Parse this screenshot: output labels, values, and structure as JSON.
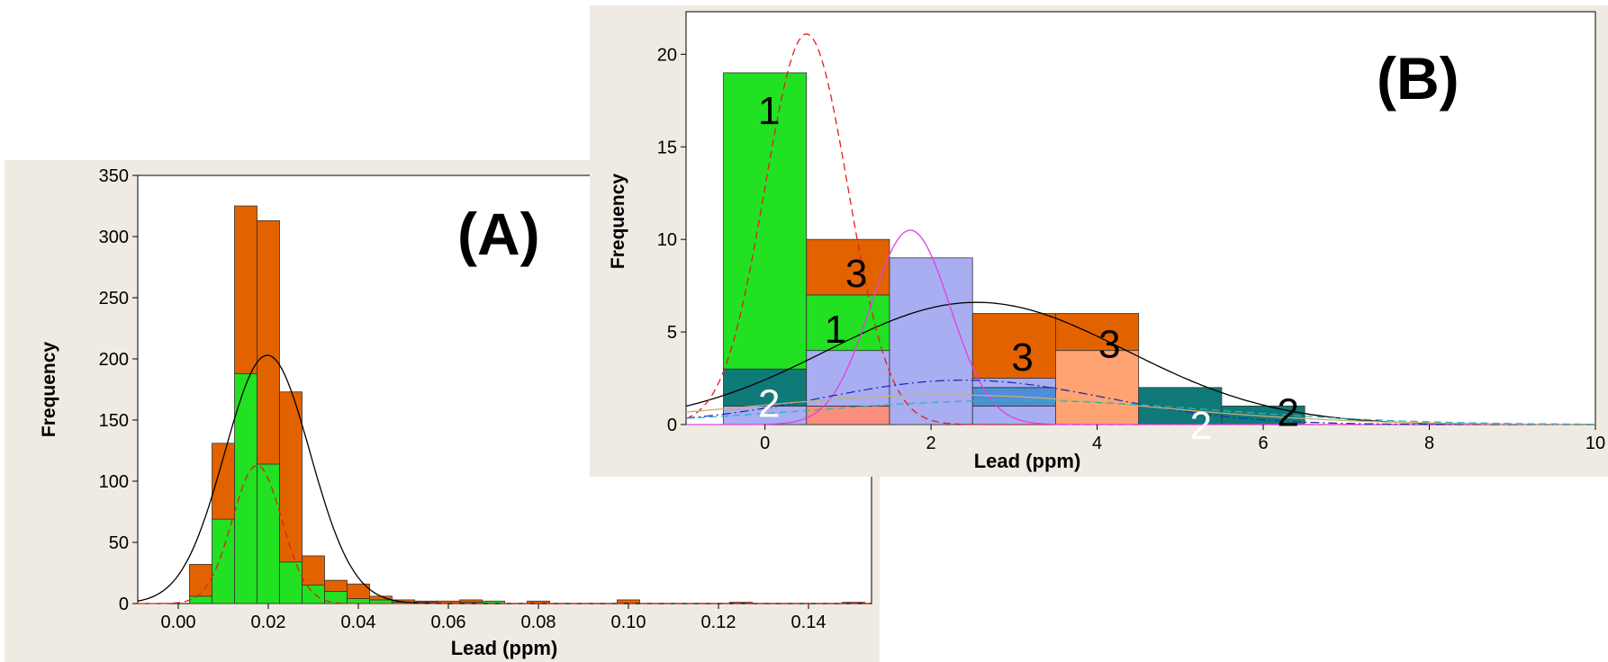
{
  "chart_data": [
    {
      "type": "bar",
      "panel_label": "(A)",
      "title": "",
      "xlabel": "Lead (ppm)",
      "ylabel": "Frequency",
      "xlim": [
        -0.009,
        0.154
      ],
      "ylim": [
        0,
        350
      ],
      "xticks": [
        "0.00",
        "0.02",
        "0.04",
        "0.06",
        "0.08",
        "0.10",
        "0.12",
        "0.14"
      ],
      "xtick_values": [
        0.0,
        0.02,
        0.04,
        0.06,
        0.08,
        0.1,
        0.12,
        0.14
      ],
      "yticks": [
        "0",
        "50",
        "100",
        "150",
        "200",
        "250",
        "300",
        "350"
      ],
      "ytick_values": [
        0,
        50,
        100,
        150,
        200,
        250,
        300,
        350
      ],
      "bin_width": 0.005,
      "bin_edges_start": [
        0.0025,
        0.0075,
        0.0125,
        0.0175,
        0.0225,
        0.0275,
        0.0325,
        0.0375,
        0.0425,
        0.0475,
        0.0525,
        0.0575,
        0.0625,
        0.0675,
        0.0775,
        0.0975,
        0.1225,
        0.1475
      ],
      "series": [
        {
          "color": "#22e022",
          "values": [
            6,
            69,
            188,
            114,
            34,
            15,
            10,
            4,
            3,
            1,
            1,
            0,
            1,
            2,
            0,
            0,
            0,
            0
          ]
        },
        {
          "color": "#e36200",
          "values": [
            26,
            62,
            137,
            199,
            139,
            24,
            9,
            12,
            3,
            2,
            1,
            2,
            2,
            0,
            2,
            3,
            1,
            1
          ]
        }
      ],
      "fits": [
        {
          "style": "solid",
          "color": "#000000",
          "mean": 0.0198,
          "sd": 0.0095,
          "peak": 203
        },
        {
          "style": "dashed",
          "color": "#e02020",
          "mean": 0.0175,
          "sd": 0.0055,
          "peak": 113
        }
      ]
    },
    {
      "type": "bar",
      "panel_label": "(B)",
      "title": "",
      "xlabel": "Lead (ppm)",
      "ylabel": "Frequency",
      "xlim": [
        -0.95,
        10.0
      ],
      "ylim": [
        0,
        22.3
      ],
      "xticks": [
        "0",
        "2",
        "4",
        "6",
        "8",
        "10"
      ],
      "xtick_values": [
        0,
        2,
        4,
        6,
        8,
        10
      ],
      "yticks": [
        "0",
        "5",
        "10",
        "15",
        "20"
      ],
      "ytick_values": [
        0,
        5,
        10,
        15,
        20
      ],
      "bins": [
        {
          "x0": -0.5,
          "x1": 0.5,
          "segments": [
            {
              "value": 1,
              "color": "#a9adf2"
            },
            {
              "value": 2,
              "color": "#0f7a78"
            },
            {
              "value": 16,
              "color": "#22e022"
            }
          ]
        },
        {
          "x0": 0.5,
          "x1": 1.5,
          "segments": [
            {
              "value": 1,
              "color": "#f98f7c"
            },
            {
              "value": 3,
              "color": "#a9adf2"
            },
            {
              "value": 3,
              "color": "#22e022"
            },
            {
              "value": 3,
              "color": "#e36200"
            }
          ]
        },
        {
          "x0": 1.5,
          "x1": 2.5,
          "segments": [
            {
              "value": 9,
              "color": "#a9adf2"
            }
          ]
        },
        {
          "x0": 2.5,
          "x1": 3.5,
          "segments": [
            {
              "value": 1,
              "color": "#a9adf2"
            },
            {
              "value": 1,
              "color": "#4e8ed8"
            },
            {
              "value": 0.5,
              "color": "#a9adf2"
            },
            {
              "value": 3.5,
              "color": "#e36200"
            }
          ]
        },
        {
          "x0": 3.5,
          "x1": 4.5,
          "segments": [
            {
              "value": 4,
              "color": "#ffa373"
            },
            {
              "value": 2,
              "color": "#e36200"
            }
          ]
        },
        {
          "x0": 4.5,
          "x1": 5.5,
          "segments": [
            {
              "value": 2,
              "color": "#0f7a78"
            }
          ]
        },
        {
          "x0": 5.5,
          "x1": 6.5,
          "segments": [
            {
              "value": 1,
              "color": "#0f7a78"
            }
          ]
        }
      ],
      "annotations": [
        {
          "text": "1",
          "x": 0.05,
          "y": 17.0,
          "color": "#000000"
        },
        {
          "text": "3",
          "x": 1.1,
          "y": 8.2,
          "color": "#000000"
        },
        {
          "text": "1",
          "x": 0.85,
          "y": 5.2,
          "color": "#000000"
        },
        {
          "text": "3",
          "x": 3.1,
          "y": 3.7,
          "color": "#000000"
        },
        {
          "text": "3",
          "x": 4.15,
          "y": 4.4,
          "color": "#000000"
        },
        {
          "text": "2",
          "x": 0.05,
          "y": 1.2,
          "color": "#ffffff"
        },
        {
          "text": "2",
          "x": 5.25,
          "y": 0.0,
          "color": "#ffffff"
        },
        {
          "text": "2",
          "x": 6.3,
          "y": 0.7,
          "color": "#000000"
        }
      ],
      "fits": [
        {
          "style": "solid",
          "color": "#000000",
          "mean": 2.55,
          "sd": 1.8,
          "peak": 6.6
        },
        {
          "style": "dashed",
          "color": "#e02020",
          "mean": 0.5,
          "sd": 0.5,
          "peak": 21.1
        },
        {
          "style": "solid",
          "color": "#e040e0",
          "mean": 1.75,
          "sd": 0.48,
          "peak": 10.5
        },
        {
          "style": "dashdot",
          "color": "#2030b0",
          "mean": 2.4,
          "sd": 1.7,
          "peak": 2.4
        },
        {
          "style": "solid",
          "color": "#c8b070",
          "mean": 2.2,
          "sd": 2.4,
          "peak": 1.6
        },
        {
          "style": "dashed",
          "color": "#30b0c0",
          "mean": 3.0,
          "sd": 2.4,
          "peak": 1.3
        }
      ]
    }
  ]
}
